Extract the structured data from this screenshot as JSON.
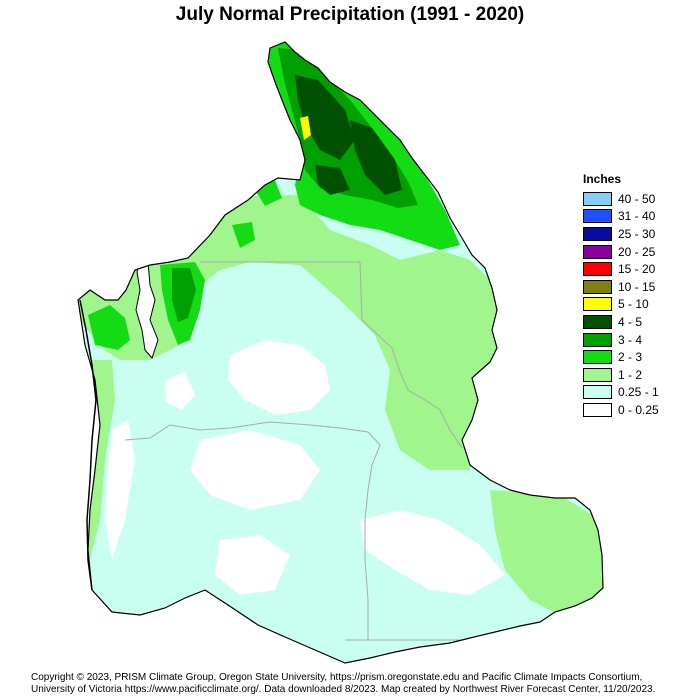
{
  "title": "July Normal Precipitation (1991 - 2020)",
  "legend": {
    "title": "Inches",
    "items": [
      {
        "label": "40 - 50",
        "color": "#87cefa"
      },
      {
        "label": "31 - 40",
        "color": "#1e50ff"
      },
      {
        "label": "25 - 30",
        "color": "#0a0aa0"
      },
      {
        "label": "20 - 25",
        "color": "#8c00a0"
      },
      {
        "label": "15 - 20",
        "color": "#ff0000"
      },
      {
        "label": "10 - 15",
        "color": "#808010"
      },
      {
        "label": "5 - 10",
        "color": "#ffff00"
      },
      {
        "label": "4 - 5",
        "color": "#005000"
      },
      {
        "label": "3 - 4",
        "color": "#00a000"
      },
      {
        "label": "2 - 3",
        "color": "#14dc14"
      },
      {
        "label": "1 - 2",
        "color": "#a0f58c"
      },
      {
        "label": "0.25 - 1",
        "color": "#c8fff0"
      },
      {
        "label": "0 - 0.25",
        "color": "#ffffff"
      }
    ]
  },
  "footer": {
    "line1": "Copyright © 2023, PRISM Climate Group, Oregon State University, https://prism.oregonstate.edu and Pacific Climate Impacts Consortium,",
    "line2": "University of Victoria https://www.pacificclimate.org/.  Data downloaded 8/2023. Map created by Northwest River Forecast Center, 11/20/2023."
  }
}
